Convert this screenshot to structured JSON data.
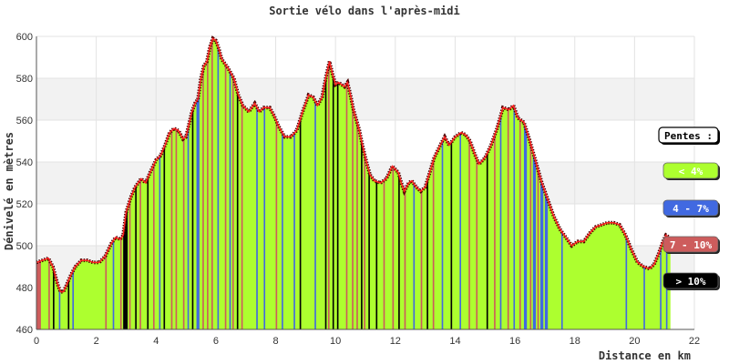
{
  "chart_data": {
    "type": "area",
    "title": "Sortie vélo dans l'après-midi",
    "xlabel": "Distance en km",
    "ylabel": "Dénivelé en mètres",
    "xlim": [
      0,
      22
    ],
    "ylim": [
      460,
      600
    ],
    "x_ticks": [
      0,
      2,
      4,
      6,
      8,
      10,
      12,
      14,
      16,
      18,
      20,
      22
    ],
    "y_ticks": [
      460,
      480,
      500,
      520,
      540,
      560,
      580,
      600
    ],
    "x_tick_labels": [
      "0",
      "2",
      "4",
      "6",
      "8",
      "10",
      "12",
      "14",
      "16",
      "18",
      "20",
      "22"
    ],
    "y_tick_labels": [
      "460",
      "480",
      "500",
      "520",
      "540",
      "560",
      "580",
      "600"
    ],
    "grid": "horizontal alternating bands",
    "legend": {
      "position": "right",
      "title": "Pentes :",
      "entries": [
        {
          "label": "< 4%",
          "color": "#adff2f"
        },
        {
          "label": "4 - 7%",
          "color": "#4169e1"
        },
        {
          "label": "7 - 10%",
          "color": "#cd5c5c"
        },
        {
          "label": "> 10%",
          "color": "#000000"
        }
      ]
    },
    "profile": [
      {
        "x": 0.0,
        "y": 492
      },
      {
        "x": 0.2,
        "y": 493
      },
      {
        "x": 0.4,
        "y": 494
      },
      {
        "x": 0.55,
        "y": 490
      },
      {
        "x": 0.7,
        "y": 482
      },
      {
        "x": 0.8,
        "y": 478
      },
      {
        "x": 0.9,
        "y": 478
      },
      {
        "x": 1.0,
        "y": 481
      },
      {
        "x": 1.15,
        "y": 486
      },
      {
        "x": 1.3,
        "y": 490
      },
      {
        "x": 1.5,
        "y": 493
      },
      {
        "x": 1.7,
        "y": 493
      },
      {
        "x": 1.9,
        "y": 492
      },
      {
        "x": 2.1,
        "y": 492
      },
      {
        "x": 2.3,
        "y": 495
      },
      {
        "x": 2.5,
        "y": 501
      },
      {
        "x": 2.65,
        "y": 504
      },
      {
        "x": 2.8,
        "y": 503
      },
      {
        "x": 2.9,
        "y": 505
      },
      {
        "x": 3.0,
        "y": 516
      },
      {
        "x": 3.15,
        "y": 523
      },
      {
        "x": 3.3,
        "y": 528
      },
      {
        "x": 3.5,
        "y": 532
      },
      {
        "x": 3.65,
        "y": 530
      },
      {
        "x": 3.8,
        "y": 535
      },
      {
        "x": 4.0,
        "y": 541
      },
      {
        "x": 4.15,
        "y": 543
      },
      {
        "x": 4.3,
        "y": 548
      },
      {
        "x": 4.45,
        "y": 554
      },
      {
        "x": 4.6,
        "y": 556
      },
      {
        "x": 4.75,
        "y": 555
      },
      {
        "x": 4.9,
        "y": 551
      },
      {
        "x": 5.0,
        "y": 552
      },
      {
        "x": 5.1,
        "y": 558
      },
      {
        "x": 5.2,
        "y": 564
      },
      {
        "x": 5.3,
        "y": 568
      },
      {
        "x": 5.4,
        "y": 570
      },
      {
        "x": 5.5,
        "y": 580
      },
      {
        "x": 5.6,
        "y": 586
      },
      {
        "x": 5.7,
        "y": 588
      },
      {
        "x": 5.8,
        "y": 595
      },
      {
        "x": 5.9,
        "y": 599
      },
      {
        "x": 6.0,
        "y": 598
      },
      {
        "x": 6.1,
        "y": 594
      },
      {
        "x": 6.2,
        "y": 589
      },
      {
        "x": 6.4,
        "y": 585
      },
      {
        "x": 6.6,
        "y": 580
      },
      {
        "x": 6.75,
        "y": 572
      },
      {
        "x": 6.9,
        "y": 567
      },
      {
        "x": 7.1,
        "y": 564
      },
      {
        "x": 7.2,
        "y": 566
      },
      {
        "x": 7.3,
        "y": 568
      },
      {
        "x": 7.45,
        "y": 564
      },
      {
        "x": 7.6,
        "y": 566
      },
      {
        "x": 7.8,
        "y": 566
      },
      {
        "x": 7.95,
        "y": 562
      },
      {
        "x": 8.1,
        "y": 557
      },
      {
        "x": 8.3,
        "y": 552
      },
      {
        "x": 8.5,
        "y": 552
      },
      {
        "x": 8.7,
        "y": 555
      },
      {
        "x": 8.9,
        "y": 564
      },
      {
        "x": 9.1,
        "y": 572
      },
      {
        "x": 9.25,
        "y": 571
      },
      {
        "x": 9.4,
        "y": 567
      },
      {
        "x": 9.55,
        "y": 571
      },
      {
        "x": 9.7,
        "y": 582
      },
      {
        "x": 9.8,
        "y": 588
      },
      {
        "x": 9.9,
        "y": 582
      },
      {
        "x": 10.0,
        "y": 577
      },
      {
        "x": 10.1,
        "y": 578
      },
      {
        "x": 10.2,
        "y": 577
      },
      {
        "x": 10.3,
        "y": 576
      },
      {
        "x": 10.4,
        "y": 578
      },
      {
        "x": 10.5,
        "y": 572
      },
      {
        "x": 10.6,
        "y": 565
      },
      {
        "x": 10.7,
        "y": 560
      },
      {
        "x": 10.8,
        "y": 555
      },
      {
        "x": 10.9,
        "y": 548
      },
      {
        "x": 11.0,
        "y": 542
      },
      {
        "x": 11.15,
        "y": 534
      },
      {
        "x": 11.3,
        "y": 531
      },
      {
        "x": 11.5,
        "y": 530
      },
      {
        "x": 11.7,
        "y": 532
      },
      {
        "x": 11.9,
        "y": 538
      },
      {
        "x": 12.1,
        "y": 535
      },
      {
        "x": 12.2,
        "y": 530
      },
      {
        "x": 12.3,
        "y": 526
      },
      {
        "x": 12.45,
        "y": 530
      },
      {
        "x": 12.55,
        "y": 531
      },
      {
        "x": 12.7,
        "y": 528
      },
      {
        "x": 12.85,
        "y": 526
      },
      {
        "x": 13.0,
        "y": 528
      },
      {
        "x": 13.15,
        "y": 535
      },
      {
        "x": 13.3,
        "y": 542
      },
      {
        "x": 13.5,
        "y": 548
      },
      {
        "x": 13.65,
        "y": 552
      },
      {
        "x": 13.8,
        "y": 548
      },
      {
        "x": 14.0,
        "y": 552
      },
      {
        "x": 14.2,
        "y": 554
      },
      {
        "x": 14.35,
        "y": 553
      },
      {
        "x": 14.5,
        "y": 550
      },
      {
        "x": 14.65,
        "y": 544
      },
      {
        "x": 14.8,
        "y": 539
      },
      {
        "x": 15.0,
        "y": 542
      },
      {
        "x": 15.2,
        "y": 548
      },
      {
        "x": 15.4,
        "y": 556
      },
      {
        "x": 15.6,
        "y": 566
      },
      {
        "x": 15.8,
        "y": 565
      },
      {
        "x": 15.95,
        "y": 567
      },
      {
        "x": 16.1,
        "y": 561
      },
      {
        "x": 16.3,
        "y": 559
      },
      {
        "x": 16.5,
        "y": 550
      },
      {
        "x": 16.7,
        "y": 540
      },
      {
        "x": 16.9,
        "y": 530
      },
      {
        "x": 17.1,
        "y": 522
      },
      {
        "x": 17.3,
        "y": 514
      },
      {
        "x": 17.5,
        "y": 508
      },
      {
        "x": 17.7,
        "y": 504
      },
      {
        "x": 17.9,
        "y": 500
      },
      {
        "x": 18.1,
        "y": 502
      },
      {
        "x": 18.3,
        "y": 502
      },
      {
        "x": 18.5,
        "y": 506
      },
      {
        "x": 18.7,
        "y": 509
      },
      {
        "x": 18.9,
        "y": 510
      },
      {
        "x": 19.1,
        "y": 511
      },
      {
        "x": 19.3,
        "y": 511
      },
      {
        "x": 19.5,
        "y": 510
      },
      {
        "x": 19.7,
        "y": 505
      },
      {
        "x": 19.9,
        "y": 498
      },
      {
        "x": 20.1,
        "y": 492
      },
      {
        "x": 20.3,
        "y": 490
      },
      {
        "x": 20.5,
        "y": 489
      },
      {
        "x": 20.65,
        "y": 491
      },
      {
        "x": 20.8,
        "y": 496
      },
      {
        "x": 20.95,
        "y": 502
      },
      {
        "x": 21.05,
        "y": 505
      },
      {
        "x": 21.15,
        "y": 504
      },
      {
        "x": 21.2,
        "y": 503
      }
    ],
    "slope_segments": [
      {
        "x0": 0.0,
        "x1": 0.15,
        "class": 2
      },
      {
        "x0": 0.4,
        "x1": 0.45,
        "class": 2
      },
      {
        "x0": 0.55,
        "x1": 0.6,
        "class": 3
      },
      {
        "x0": 0.75,
        "x1": 0.8,
        "class": 1
      },
      {
        "x0": 1.05,
        "x1": 1.1,
        "class": 3
      },
      {
        "x0": 1.2,
        "x1": 1.25,
        "class": 1
      },
      {
        "x0": 2.3,
        "x1": 2.35,
        "class": 2
      },
      {
        "x0": 2.55,
        "x1": 2.6,
        "class": 1
      },
      {
        "x0": 2.8,
        "x1": 2.85,
        "class": 2
      },
      {
        "x0": 2.9,
        "x1": 3.0,
        "class": 3
      },
      {
        "x0": 3.0,
        "x1": 3.05,
        "class": 3
      },
      {
        "x0": 3.1,
        "x1": 3.15,
        "class": 2
      },
      {
        "x0": 3.3,
        "x1": 3.35,
        "class": 3
      },
      {
        "x0": 3.45,
        "x1": 3.5,
        "class": 2
      },
      {
        "x0": 3.7,
        "x1": 3.75,
        "class": 3
      },
      {
        "x0": 3.9,
        "x1": 3.95,
        "class": 2
      },
      {
        "x0": 4.1,
        "x1": 4.15,
        "class": 1
      },
      {
        "x0": 4.25,
        "x1": 4.3,
        "class": 3
      },
      {
        "x0": 4.5,
        "x1": 4.55,
        "class": 2
      },
      {
        "x0": 4.65,
        "x1": 4.7,
        "class": 2
      },
      {
        "x0": 4.9,
        "x1": 4.95,
        "class": 2
      },
      {
        "x0": 5.05,
        "x1": 5.1,
        "class": 1
      },
      {
        "x0": 5.2,
        "x1": 5.25,
        "class": 3
      },
      {
        "x0": 5.35,
        "x1": 5.45,
        "class": 1
      },
      {
        "x0": 5.55,
        "x1": 5.6,
        "class": 2
      },
      {
        "x0": 5.7,
        "x1": 5.75,
        "class": 2
      },
      {
        "x0": 5.85,
        "x1": 5.9,
        "class": 2
      },
      {
        "x0": 6.05,
        "x1": 6.1,
        "class": 1
      },
      {
        "x0": 6.3,
        "x1": 6.35,
        "class": 2
      },
      {
        "x0": 6.45,
        "x1": 6.5,
        "class": 1
      },
      {
        "x0": 6.55,
        "x1": 6.6,
        "class": 2
      },
      {
        "x0": 6.7,
        "x1": 6.75,
        "class": 3
      },
      {
        "x0": 6.85,
        "x1": 6.9,
        "class": 2
      },
      {
        "x0": 7.35,
        "x1": 7.4,
        "class": 1
      },
      {
        "x0": 7.6,
        "x1": 7.65,
        "class": 1
      },
      {
        "x0": 8.0,
        "x1": 8.05,
        "class": 2
      },
      {
        "x0": 8.2,
        "x1": 8.25,
        "class": 1
      },
      {
        "x0": 8.6,
        "x1": 8.65,
        "class": 1
      },
      {
        "x0": 8.8,
        "x1": 8.85,
        "class": 3
      },
      {
        "x0": 9.3,
        "x1": 9.35,
        "class": 1
      },
      {
        "x0": 9.65,
        "x1": 9.7,
        "class": 3
      },
      {
        "x0": 9.75,
        "x1": 9.8,
        "class": 2
      },
      {
        "x0": 9.9,
        "x1": 9.95,
        "class": 3
      },
      {
        "x0": 10.05,
        "x1": 10.1,
        "class": 3
      },
      {
        "x0": 10.35,
        "x1": 10.4,
        "class": 2
      },
      {
        "x0": 10.55,
        "x1": 10.6,
        "class": 2
      },
      {
        "x0": 10.7,
        "x1": 10.75,
        "class": 2
      },
      {
        "x0": 10.85,
        "x1": 10.9,
        "class": 3
      },
      {
        "x0": 10.95,
        "x1": 11.0,
        "class": 2
      },
      {
        "x0": 11.1,
        "x1": 11.15,
        "class": 3
      },
      {
        "x0": 11.35,
        "x1": 11.4,
        "class": 3
      },
      {
        "x0": 11.6,
        "x1": 11.65,
        "class": 2
      },
      {
        "x0": 11.9,
        "x1": 11.95,
        "class": 2
      },
      {
        "x0": 12.1,
        "x1": 12.15,
        "class": 3
      },
      {
        "x0": 12.3,
        "x1": 12.35,
        "class": 2
      },
      {
        "x0": 12.6,
        "x1": 12.65,
        "class": 1
      },
      {
        "x0": 12.85,
        "x1": 12.9,
        "class": 2
      },
      {
        "x0": 13.05,
        "x1": 13.1,
        "class": 3
      },
      {
        "x0": 13.25,
        "x1": 13.3,
        "class": 2
      },
      {
        "x0": 13.55,
        "x1": 13.6,
        "class": 1
      },
      {
        "x0": 13.85,
        "x1": 13.9,
        "class": 3
      },
      {
        "x0": 14.15,
        "x1": 14.2,
        "class": 1
      },
      {
        "x0": 14.45,
        "x1": 14.5,
        "class": 2
      },
      {
        "x0": 14.7,
        "x1": 14.75,
        "class": 2
      },
      {
        "x0": 15.05,
        "x1": 15.1,
        "class": 3
      },
      {
        "x0": 15.3,
        "x1": 15.35,
        "class": 2
      },
      {
        "x0": 15.5,
        "x1": 15.55,
        "class": 1
      },
      {
        "x0": 15.75,
        "x1": 15.8,
        "class": 2
      },
      {
        "x0": 15.95,
        "x1": 16.0,
        "class": 1
      },
      {
        "x0": 16.15,
        "x1": 16.2,
        "class": 2
      },
      {
        "x0": 16.3,
        "x1": 16.4,
        "class": 1
      },
      {
        "x0": 16.5,
        "x1": 16.55,
        "class": 2
      },
      {
        "x0": 16.6,
        "x1": 16.7,
        "class": 1
      },
      {
        "x0": 16.75,
        "x1": 16.8,
        "class": 2
      },
      {
        "x0": 16.85,
        "x1": 16.95,
        "class": 1
      },
      {
        "x0": 17.0,
        "x1": 17.1,
        "class": 1
      },
      {
        "x0": 17.55,
        "x1": 17.6,
        "class": 1
      },
      {
        "x0": 19.7,
        "x1": 19.75,
        "class": 1
      },
      {
        "x0": 20.3,
        "x1": 20.35,
        "class": 1
      },
      {
        "x0": 20.85,
        "x1": 20.9,
        "class": 1
      },
      {
        "x0": 21.05,
        "x1": 21.1,
        "class": 1
      }
    ]
  }
}
